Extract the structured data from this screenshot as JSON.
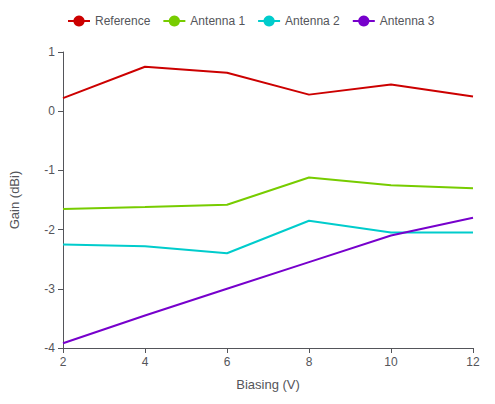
{
  "chart_data": {
    "type": "line",
    "x": [
      2,
      4,
      6,
      8,
      10,
      12
    ],
    "series": [
      {
        "name": "Reference",
        "color": "#cc0000",
        "values": [
          0.22,
          0.75,
          0.65,
          0.28,
          0.45,
          0.25
        ]
      },
      {
        "name": "Antenna 1",
        "color": "#77cc00",
        "values": [
          -1.65,
          -1.62,
          -1.58,
          -1.12,
          -1.25,
          -1.3
        ]
      },
      {
        "name": "Antenna 2",
        "color": "#00cccc",
        "values": [
          -2.25,
          -2.28,
          -2.4,
          -1.85,
          -2.05,
          -2.05
        ]
      },
      {
        "name": "Antenna 3",
        "color": "#7700cc",
        "values": [
          -3.92,
          -3.45,
          -3.0,
          -2.55,
          -2.1,
          -1.8
        ]
      }
    ],
    "xlabel": "Biasing (V)",
    "ylabel": "Gain (dBi)",
    "xlim": [
      2,
      12
    ],
    "ylim": [
      -4,
      1
    ],
    "xticks": [
      2,
      4,
      6,
      8,
      10,
      12
    ],
    "yticks": [
      -4,
      -3,
      -2,
      -1,
      0,
      1
    ],
    "grid": false,
    "legend": "upper left"
  }
}
